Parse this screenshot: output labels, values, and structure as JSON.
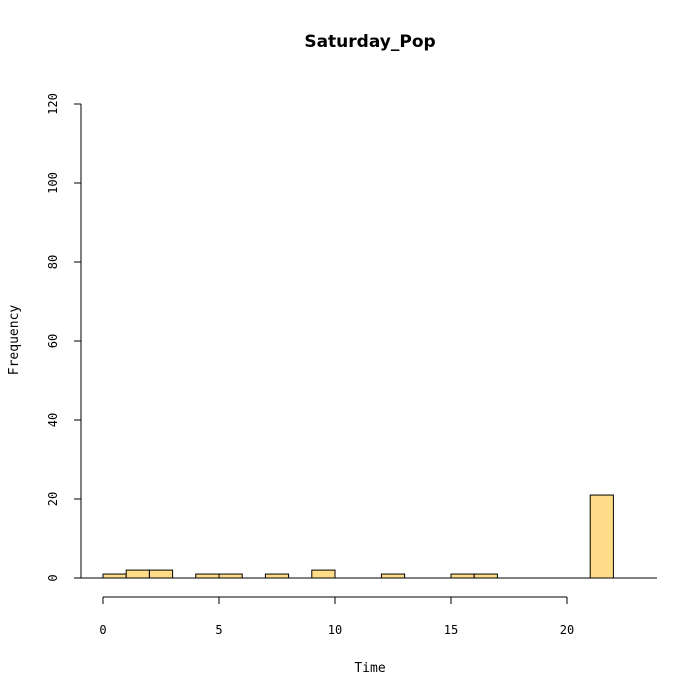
{
  "chart_data": {
    "type": "bar",
    "title": "Saturday_Pop",
    "xlabel": "Time",
    "ylabel": "Frequency",
    "xlim": [
      0,
      24
    ],
    "ylim": [
      0,
      120
    ],
    "x_ticks": [
      "0",
      "5",
      "10",
      "15",
      "20"
    ],
    "y_ticks": [
      "0",
      "20",
      "40",
      "60",
      "80",
      "100",
      "120"
    ],
    "bin_width": 1,
    "bins": [
      {
        "start": 0,
        "end": 1,
        "count": 1
      },
      {
        "start": 1,
        "end": 2,
        "count": 2
      },
      {
        "start": 2,
        "end": 3,
        "count": 2
      },
      {
        "start": 4,
        "end": 5,
        "count": 1
      },
      {
        "start": 5,
        "end": 6,
        "count": 1
      },
      {
        "start": 7,
        "end": 8,
        "count": 1
      },
      {
        "start": 9,
        "end": 10,
        "count": 2
      },
      {
        "start": 12,
        "end": 13,
        "count": 1
      },
      {
        "start": 15,
        "end": 16,
        "count": 1
      },
      {
        "start": 16,
        "end": 17,
        "count": 1
      },
      {
        "start": 21,
        "end": 22,
        "count": 21
      }
    ],
    "bar_color": "#FFDD88",
    "bar_stroke": "#000000",
    "grid": false
  }
}
